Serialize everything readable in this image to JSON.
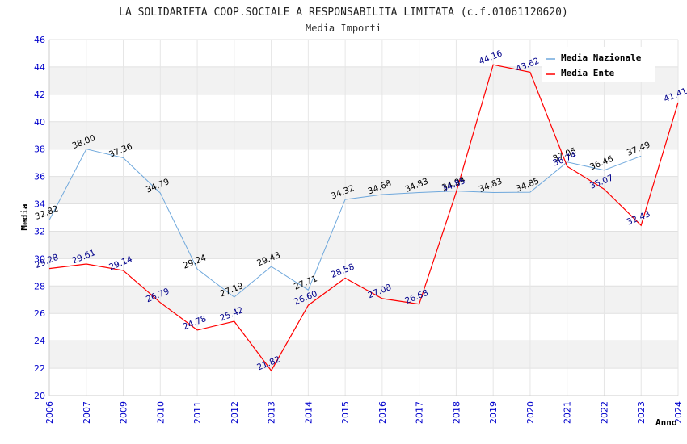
{
  "chart_data": {
    "type": "line",
    "title": "LA SOLIDARIETA COOP.SOCIALE A RESPONSABILITA LIMITATA (c.f.01061120620)",
    "subtitle": "Media Importi",
    "xlabel": "Anno",
    "ylabel": "Media",
    "ylim": [
      20,
      46
    ],
    "yticks": [
      "20",
      "22",
      "24",
      "26",
      "28",
      "30",
      "32",
      "34",
      "36",
      "38",
      "40",
      "42",
      "44",
      "46"
    ],
    "categories": [
      "2006",
      "2007",
      "2009",
      "2010",
      "2011",
      "2012",
      "2013",
      "2014",
      "2015",
      "2016",
      "2017",
      "2018",
      "2019",
      "2020",
      "2021",
      "2022",
      "2023",
      "2024"
    ],
    "series": [
      {
        "name": "Media Nazionale",
        "color": "#6fa8dc",
        "values": [
          32.82,
          38.0,
          37.36,
          34.79,
          29.24,
          27.19,
          29.43,
          27.71,
          34.32,
          34.68,
          34.83,
          34.94,
          34.83,
          34.85,
          37.05,
          36.46,
          37.49,
          null
        ],
        "labels": [
          "32.82",
          "38.00",
          "37.36",
          "34.79",
          "29.24",
          "27.19",
          "29.43",
          "27.71",
          "34.32",
          "34.68",
          "34.83",
          "34.94",
          "34.83",
          "34.85",
          "37.05",
          "36.46",
          "37.49",
          ""
        ]
      },
      {
        "name": "Media Ente",
        "color": "#ff0000",
        "values": [
          29.28,
          29.61,
          29.14,
          26.79,
          24.78,
          25.42,
          21.82,
          26.6,
          28.58,
          27.08,
          26.68,
          34.85,
          44.16,
          43.62,
          36.74,
          35.07,
          32.43,
          41.41
        ],
        "labels": [
          "29.28",
          "29.61",
          "29.14",
          "26.79",
          "24.78",
          "25.42",
          "21.82",
          "26.60",
          "28.58",
          "27.08",
          "26.68",
          "34.85",
          "44.16",
          "43.62",
          "36.74",
          "35.07",
          "32.43",
          "41.41"
        ]
      }
    ],
    "legend_position": "top-right"
  }
}
